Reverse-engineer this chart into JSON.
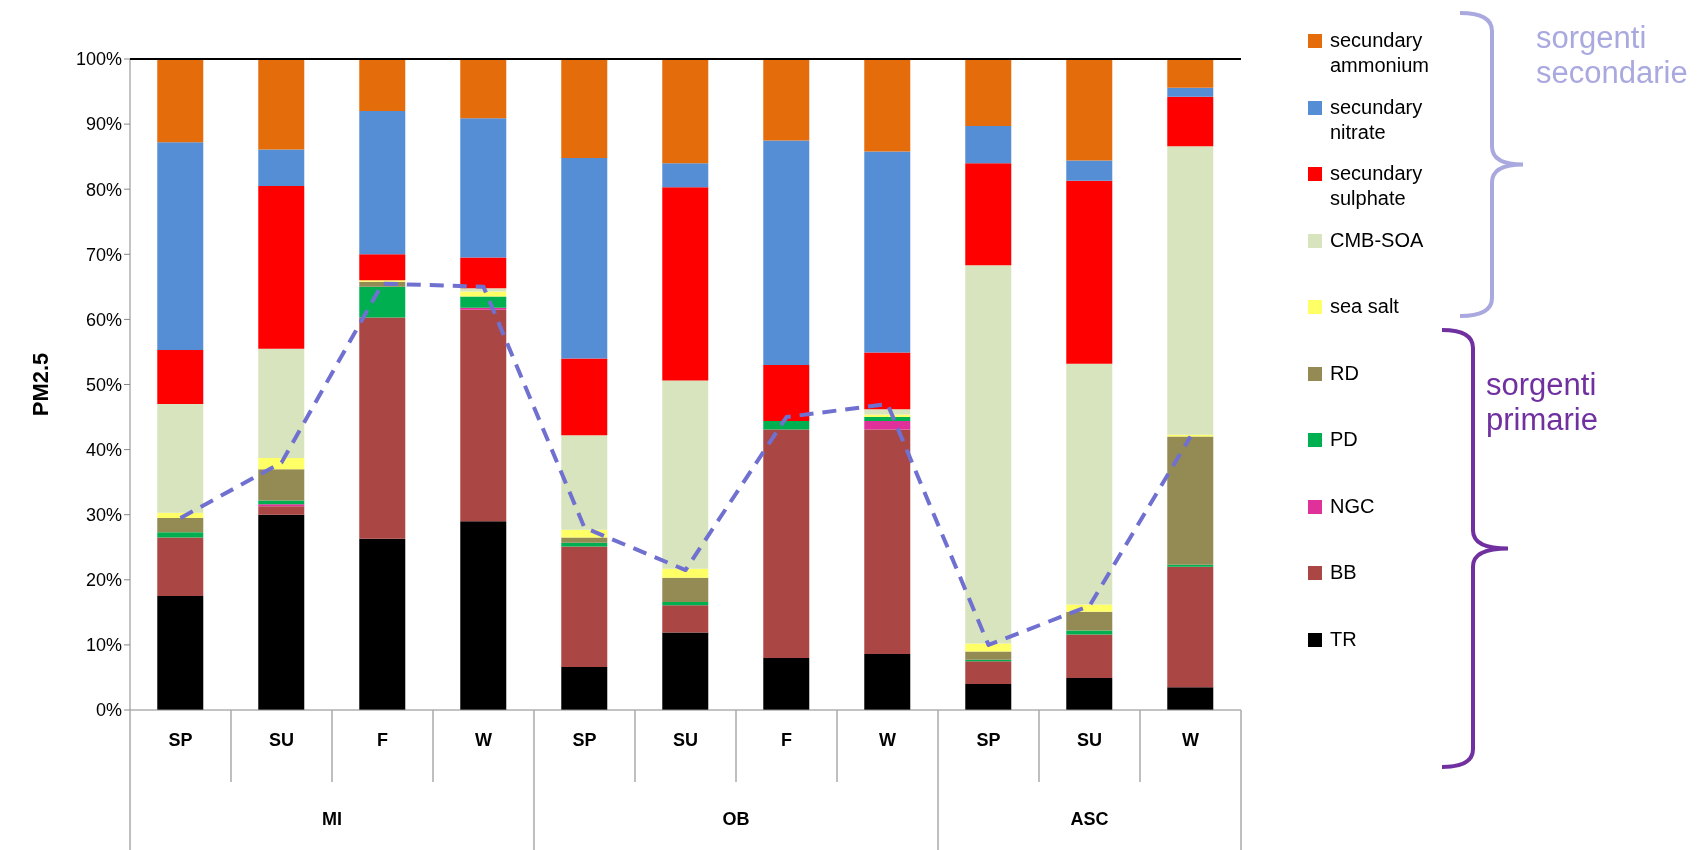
{
  "chart_data": {
    "type": "bar",
    "stacked": true,
    "ylabel": "PM2.5",
    "categories": [
      "SP",
      "SU",
      "F",
      "W",
      "SP",
      "SU",
      "F",
      "W",
      "SP",
      "SU",
      "W"
    ],
    "annotations": [
      "MI",
      "OB",
      "ASC",
      "sorgenti secondarie",
      "sorgenti primarie"
    ],
    "ylim": [
      0,
      100
    ],
    "yticks": [
      {
        "value": 0,
        "label": "0%"
      },
      {
        "value": 10,
        "label": "10%"
      },
      {
        "value": 20,
        "label": "20%"
      },
      {
        "value": 30,
        "label": "30%"
      },
      {
        "value": 40,
        "label": "40%"
      },
      {
        "value": 50,
        "label": "50%"
      },
      {
        "value": 60,
        "label": "60%"
      },
      {
        "value": 70,
        "label": "70%"
      },
      {
        "value": 80,
        "label": "80%"
      },
      {
        "value": 90,
        "label": "90%"
      },
      {
        "value": 100,
        "label": "100%"
      }
    ],
    "legend": "right",
    "line_style": "dashed",
    "marker": "none",
    "series": [
      {
        "name": "TR",
        "color": "#000000",
        "values": [
          17.5,
          30,
          26.3,
          29,
          6.6,
          11.9,
          8,
          8.6,
          4,
          4.9,
          3.5
        ]
      },
      {
        "name": "BB",
        "color": "#aa4643",
        "values": [
          9,
          1.3,
          34,
          32.5,
          18.5,
          4.2,
          35.1,
          34.5,
          3.5,
          6.7,
          18.5
        ]
      },
      {
        "name": "NGC",
        "color": "#e0309a",
        "values": [
          0,
          0.3,
          0,
          0.3,
          0,
          null,
          0,
          1.3,
          0,
          0,
          0
        ]
      },
      {
        "name": "PD",
        "color": "#00b050",
        "values": [
          0.8,
          0.6,
          4.7,
          1.7,
          0.6,
          0.5,
          1.3,
          0.6,
          0.2,
          0.6,
          0.3
        ]
      },
      {
        "name": "RD",
        "color": "#948a54",
        "values": [
          2.2,
          4.8,
          0.8,
          0,
          0.8,
          3.7,
          0,
          0,
          1.3,
          2.9,
          19.7
        ]
      },
      {
        "name": "sea salt",
        "color": "#ffff66",
        "values": [
          0.8,
          1.7,
          0.2,
          0.8,
          1.2,
          1.4,
          0,
          0.4,
          1.2,
          1.1,
          0.3
        ]
      },
      {
        "name": "CMB-SOA",
        "color": "#d7e4bd",
        "values": [
          16.7,
          16.8,
          0,
          0.5,
          14.5,
          28.9,
          0,
          0.8,
          58.1,
          37,
          44.3
        ]
      },
      {
        "name": "secundary sulphate",
        "color": "#ff0000",
        "values": [
          8.3,
          25,
          4,
          4.7,
          11.8,
          29.7,
          8.6,
          8.7,
          15.7,
          28.1,
          7.6
        ]
      },
      {
        "name": "secundary nitrate",
        "color": "#558ed5",
        "values": [
          31.9,
          5.6,
          22,
          21.4,
          30.8,
          3.7,
          34.5,
          30.9,
          5.7,
          3.1,
          1.4
        ]
      },
      {
        "name": "secundary ammonium",
        "color": "#e46c0a",
        "values": [
          12.8,
          13.9,
          8,
          9.1,
          15.2,
          15.9,
          12.5,
          14.2,
          10.3,
          15.6,
          4.4
        ]
      },
      {
        "type": "line",
        "color": "#7070d0",
        "values": [
          29.5,
          38,
          65.5,
          65,
          28,
          21.5,
          45,
          47,
          10,
          16,
          42
        ]
      }
    ]
  }
}
